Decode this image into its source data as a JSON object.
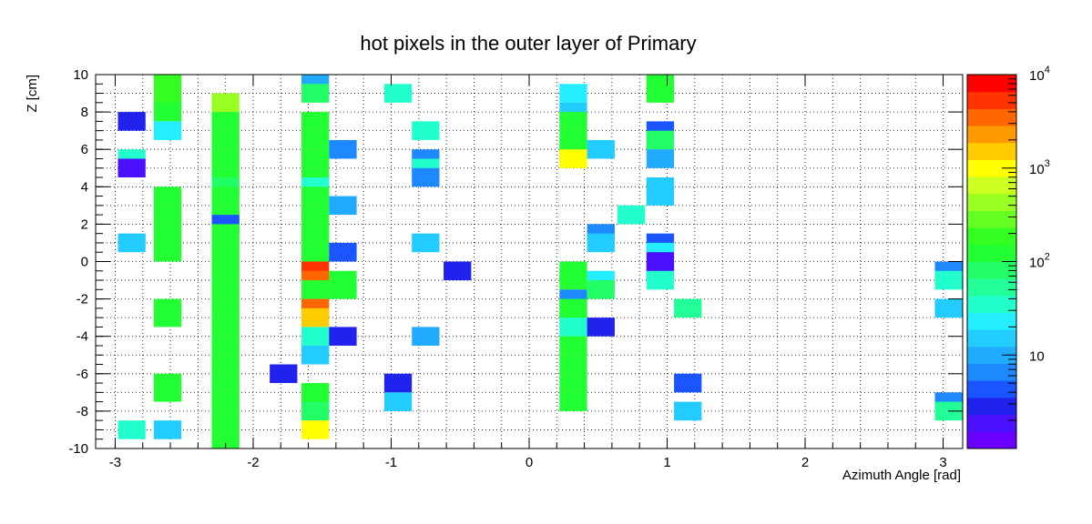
{
  "chart_data": {
    "type": "heatmap",
    "title": "hot pixels in the outer layer of Primary",
    "xlabel": "Azimuth Angle [rad]",
    "ylabel": "Z [cm]",
    "xlim": [
      -3.1416,
      3.1416
    ],
    "ylim": [
      -10,
      10
    ],
    "x_ticks": [
      "-3",
      "-2",
      "-1",
      "0",
      "1",
      "2",
      "3"
    ],
    "y_ticks": [
      "-10",
      "-8",
      "-6",
      "-4",
      "-2",
      "0",
      "2",
      "4",
      "6",
      "8",
      "10"
    ],
    "grid": true,
    "color_scale": "log",
    "z_range": [
      1,
      10000
    ],
    "colorbar_ticks": [
      "10",
      "10^2",
      "10^3",
      "10^4"
    ],
    "bin_width": 0.2,
    "bin_height": 1,
    "cells": [
      {
        "x": -2.88,
        "y": 7.5,
        "z": 3
      },
      {
        "x": -2.88,
        "y": 5.5,
        "z": 40
      },
      {
        "x": -2.88,
        "y": 5.0,
        "z": 2
      },
      {
        "x": -2.88,
        "y": 1.0,
        "z": 15
      },
      {
        "x": -2.88,
        "y": -9.0,
        "z": 40
      },
      {
        "x": -2.62,
        "y": 9.5,
        "z": 200
      },
      {
        "x": -2.62,
        "y": 8.5,
        "z": 200
      },
      {
        "x": -2.62,
        "y": 8.0,
        "z": 150
      },
      {
        "x": -2.62,
        "y": 7.0,
        "z": 20
      },
      {
        "x": -2.62,
        "y": 3.5,
        "z": 100
      },
      {
        "x": -2.62,
        "y": 2.5,
        "z": 100
      },
      {
        "x": -2.62,
        "y": 1.5,
        "z": 100
      },
      {
        "x": -2.62,
        "y": 0.5,
        "z": 100
      },
      {
        "x": -2.62,
        "y": -2.5,
        "z": 100
      },
      {
        "x": -2.62,
        "y": -3.0,
        "z": 100
      },
      {
        "x": -2.62,
        "y": -6.5,
        "z": 100
      },
      {
        "x": -2.62,
        "y": -7.0,
        "z": 100
      },
      {
        "x": -2.62,
        "y": -9.0,
        "z": 15
      },
      {
        "x": -2.2,
        "y": 8.5,
        "z": 500
      },
      {
        "x": -2.2,
        "y": 7.5,
        "z": 100
      },
      {
        "x": -2.2,
        "y": 6.5,
        "z": 100
      },
      {
        "x": -2.2,
        "y": 5.5,
        "z": 100
      },
      {
        "x": -2.2,
        "y": 4.5,
        "z": 100
      },
      {
        "x": -2.2,
        "y": 4.0,
        "z": 70
      },
      {
        "x": -2.2,
        "y": 3.5,
        "z": 100
      },
      {
        "x": -2.2,
        "y": 2.5,
        "z": 100
      },
      {
        "x": -2.2,
        "y": 2.0,
        "z": 4
      },
      {
        "x": -2.2,
        "y": 1.5,
        "z": 100
      },
      {
        "x": -2.2,
        "y": 0.5,
        "z": 100
      },
      {
        "x": -2.2,
        "y": -0.5,
        "z": 100
      },
      {
        "x": -2.2,
        "y": -1.5,
        "z": 100
      },
      {
        "x": -2.2,
        "y": -2.5,
        "z": 100
      },
      {
        "x": -2.2,
        "y": -3.5,
        "z": 100
      },
      {
        "x": -2.2,
        "y": -4.5,
        "z": 100
      },
      {
        "x": -2.2,
        "y": -5.5,
        "z": 100
      },
      {
        "x": -2.2,
        "y": -6.5,
        "z": 100
      },
      {
        "x": -2.2,
        "y": -7.5,
        "z": 100
      },
      {
        "x": -2.2,
        "y": -8.5,
        "z": 100
      },
      {
        "x": -2.2,
        "y": -9.5,
        "z": 100
      },
      {
        "x": -1.78,
        "y": -6.0,
        "z": 3
      },
      {
        "x": -1.55,
        "y": 9.5,
        "z": 10
      },
      {
        "x": -1.55,
        "y": 9.0,
        "z": 70
      },
      {
        "x": -1.55,
        "y": 7.5,
        "z": 100
      },
      {
        "x": -1.55,
        "y": 6.5,
        "z": 100
      },
      {
        "x": -1.55,
        "y": 5.5,
        "z": 100
      },
      {
        "x": -1.55,
        "y": 4.5,
        "z": 100
      },
      {
        "x": -1.55,
        "y": 4.0,
        "z": 30
      },
      {
        "x": -1.55,
        "y": 3.5,
        "z": 100
      },
      {
        "x": -1.55,
        "y": 2.5,
        "z": 100
      },
      {
        "x": -1.55,
        "y": 1.5,
        "z": 100
      },
      {
        "x": -1.55,
        "y": 0.5,
        "z": 100
      },
      {
        "x": -1.55,
        "y": -0.5,
        "z": 6000
      },
      {
        "x": -1.55,
        "y": -1.0,
        "z": 4000
      },
      {
        "x": -1.55,
        "y": -1.5,
        "z": 100
      },
      {
        "x": -1.55,
        "y": -2.5,
        "z": 3000
      },
      {
        "x": -1.55,
        "y": -3.0,
        "z": 1500
      },
      {
        "x": -1.55,
        "y": -4.0,
        "z": 30
      },
      {
        "x": -1.55,
        "y": -4.5,
        "z": 40
      },
      {
        "x": -1.55,
        "y": -5.0,
        "z": 15
      },
      {
        "x": -1.55,
        "y": -7.0,
        "z": 100
      },
      {
        "x": -1.55,
        "y": -7.5,
        "z": 100
      },
      {
        "x": -1.55,
        "y": -8.0,
        "z": 70
      },
      {
        "x": -1.55,
        "y": -9.0,
        "z": 1000
      },
      {
        "x": -1.35,
        "y": 6.0,
        "z": 6
      },
      {
        "x": -1.35,
        "y": 3.0,
        "z": 10
      },
      {
        "x": -1.35,
        "y": 0.5,
        "z": 4
      },
      {
        "x": -1.35,
        "y": -1.0,
        "z": 100
      },
      {
        "x": -1.35,
        "y": -1.5,
        "z": 100
      },
      {
        "x": -1.35,
        "y": -4.0,
        "z": 3
      },
      {
        "x": -0.95,
        "y": 9.0,
        "z": 30
      },
      {
        "x": -0.95,
        "y": -6.5,
        "z": 3
      },
      {
        "x": -0.95,
        "y": -7.5,
        "z": 15
      },
      {
        "x": -0.75,
        "y": 7.0,
        "z": 30
      },
      {
        "x": -0.75,
        "y": 5.5,
        "z": 6
      },
      {
        "x": -0.75,
        "y": 5.0,
        "z": 30
      },
      {
        "x": -0.75,
        "y": 4.5,
        "z": 8
      },
      {
        "x": -0.75,
        "y": 1.0,
        "z": 15
      },
      {
        "x": -0.75,
        "y": -4.0,
        "z": 10
      },
      {
        "x": -0.52,
        "y": -0.5,
        "z": 3
      },
      {
        "x": 0.32,
        "y": 9.0,
        "z": 20
      },
      {
        "x": 0.32,
        "y": 8.0,
        "z": 15
      },
      {
        "x": 0.32,
        "y": 7.5,
        "z": 100
      },
      {
        "x": 0.32,
        "y": 6.5,
        "z": 100
      },
      {
        "x": 0.32,
        "y": 6.0,
        "z": 100
      },
      {
        "x": 0.32,
        "y": 5.5,
        "z": 1000
      },
      {
        "x": 0.32,
        "y": -0.5,
        "z": 100
      },
      {
        "x": 0.32,
        "y": -1.0,
        "z": 100
      },
      {
        "x": 0.32,
        "y": -2.0,
        "z": 8
      },
      {
        "x": 0.32,
        "y": -2.5,
        "z": 100
      },
      {
        "x": 0.32,
        "y": -3.0,
        "z": 100
      },
      {
        "x": 0.32,
        "y": -3.5,
        "z": 40
      },
      {
        "x": 0.32,
        "y": -4.5,
        "z": 100
      },
      {
        "x": 0.32,
        "y": -5.5,
        "z": 100
      },
      {
        "x": 0.32,
        "y": -6.5,
        "z": 100
      },
      {
        "x": 0.32,
        "y": -7.5,
        "z": 100
      },
      {
        "x": 0.52,
        "y": 6.0,
        "z": 15
      },
      {
        "x": 0.52,
        "y": 1.5,
        "z": 8
      },
      {
        "x": 0.52,
        "y": 1.0,
        "z": 15
      },
      {
        "x": 0.52,
        "y": -1.0,
        "z": 20
      },
      {
        "x": 0.52,
        "y": -1.5,
        "z": 70
      },
      {
        "x": 0.52,
        "y": -3.5,
        "z": 3
      },
      {
        "x": 0.74,
        "y": 2.5,
        "z": 30
      },
      {
        "x": 0.95,
        "y": 9.5,
        "z": 100
      },
      {
        "x": 0.95,
        "y": 9.0,
        "z": 100
      },
      {
        "x": 0.95,
        "y": 7.0,
        "z": 4
      },
      {
        "x": 0.95,
        "y": 6.5,
        "z": 70
      },
      {
        "x": 0.95,
        "y": 5.5,
        "z": 10
      },
      {
        "x": 0.95,
        "y": 4.0,
        "z": 15
      },
      {
        "x": 0.95,
        "y": 3.5,
        "z": 15
      },
      {
        "x": 0.95,
        "y": 1.0,
        "z": 4
      },
      {
        "x": 0.95,
        "y": 0.5,
        "z": 20
      },
      {
        "x": 0.95,
        "y": 0.0,
        "z": 2
      },
      {
        "x": 0.95,
        "y": -0.5,
        "z": 2
      },
      {
        "x": 0.95,
        "y": -1.0,
        "z": 40
      },
      {
        "x": 1.15,
        "y": -2.5,
        "z": 50
      },
      {
        "x": 1.15,
        "y": -6.5,
        "z": 4
      },
      {
        "x": 1.15,
        "y": -8.0,
        "z": 15
      },
      {
        "x": 3.04,
        "y": -0.5,
        "z": 8
      },
      {
        "x": 3.04,
        "y": -1.0,
        "z": 30
      },
      {
        "x": 3.04,
        "y": -2.5,
        "z": 15
      },
      {
        "x": 3.04,
        "y": -7.5,
        "z": 6
      },
      {
        "x": 3.04,
        "y": -8.0,
        "z": 50
      }
    ]
  }
}
